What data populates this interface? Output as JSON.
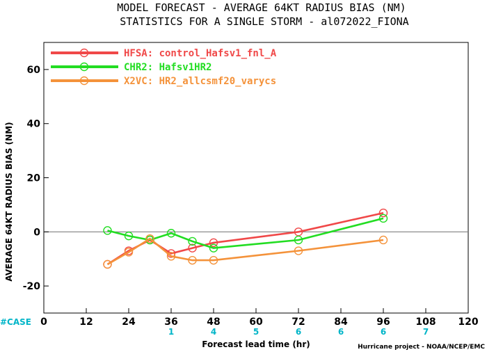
{
  "chart_data": {
    "type": "line",
    "title": "MODEL FORECAST - AVERAGE 64KT RADIUS BIAS (NM)",
    "subtitle": "STATISTICS FOR A SINGLE STORM - al072022_FIONA",
    "xlabel": "Forecast lead time (hr)",
    "ylabel": "AVERAGE 64KT RADIUS BIAS (NM)",
    "xlim": [
      0,
      120
    ],
    "ylim": [
      -30,
      70
    ],
    "xticks": [
      "0",
      "12",
      "24",
      "36",
      "48",
      "60",
      "72",
      "84",
      "96",
      "108",
      "120"
    ],
    "yticks": [
      "-20",
      "0",
      "20",
      "40",
      "60"
    ],
    "legend_position": "top-left",
    "grid": false,
    "zero_line": true,
    "series": [
      {
        "name": "HFSA: control_Hafsv1_fnl_A",
        "color": "#f04848",
        "x": [
          18,
          24,
          30,
          36,
          42,
          48,
          72,
          96
        ],
        "y": [
          -12,
          -7,
          -3,
          -8,
          -6,
          -4,
          0,
          7
        ]
      },
      {
        "name": "CHR2: Hafsv1HR2",
        "color": "#22dd22",
        "x": [
          18,
          24,
          30,
          36,
          42,
          48,
          72,
          96
        ],
        "y": [
          0.5,
          -1.5,
          -3,
          -0.5,
          -3.5,
          -6,
          -3,
          5
        ]
      },
      {
        "name": "X2VC: HR2_allcsmf20_varycs",
        "color": "#f4923a",
        "x": [
          18,
          24,
          30,
          36,
          42,
          48,
          72,
          96
        ],
        "y": [
          -12,
          -7.5,
          -2.5,
          -9,
          -10.5,
          -10.5,
          -7,
          -3
        ]
      }
    ],
    "cases": {
      "label": "#CASE",
      "color": "#00b5c8",
      "x": [
        36,
        48,
        60,
        72,
        84,
        96,
        108
      ],
      "counts": [
        "1",
        "4",
        "5",
        "6",
        "6",
        "6",
        "7"
      ]
    },
    "credit": "Hurricane project - NOAA/NCEP/EMC"
  }
}
